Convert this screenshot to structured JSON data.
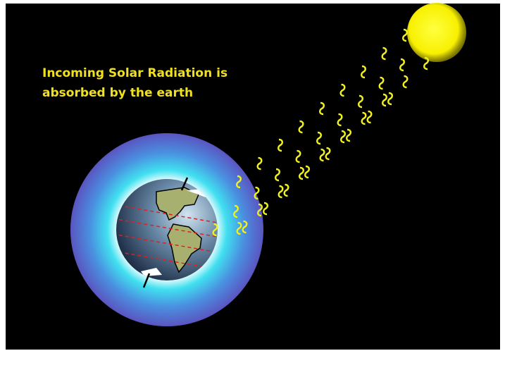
{
  "caption": {
    "lines": [
      "Incoming Solar Radiation is",
      "absorbed by the earth"
    ]
  }
}
